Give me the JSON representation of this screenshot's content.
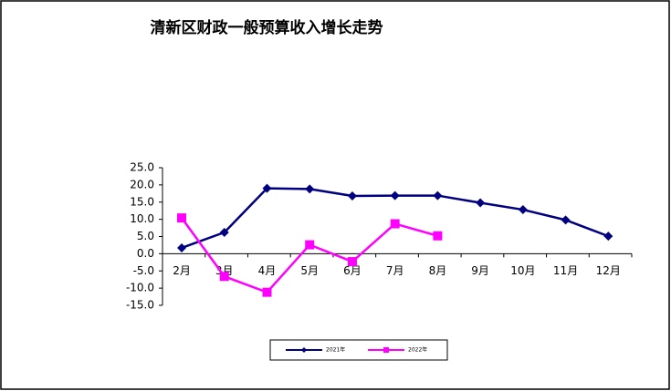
{
  "chart_data": {
    "type": "line",
    "title": "清新区财政一般预算收入增长走势",
    "categories": [
      "2月",
      "3月",
      "4月",
      "5月",
      "6月",
      "7月",
      "8月",
      "9月",
      "10月",
      "11月",
      "12月"
    ],
    "series": [
      {
        "name": "2021年",
        "color": "#000080",
        "marker": "diamond",
        "values": [
          1.7,
          6.2,
          19.0,
          18.8,
          16.8,
          16.9,
          16.9,
          14.8,
          12.8,
          9.8,
          5.1
        ]
      },
      {
        "name": "2022年",
        "color": "#ff00ff",
        "marker": "square",
        "values": [
          10.4,
          -6.6,
          -11.2,
          2.6,
          -2.3,
          8.7,
          5.2,
          null,
          null,
          null,
          null
        ]
      }
    ],
    "ylim": [
      -15,
      25
    ],
    "yticks": [
      {
        "value": -15,
        "label": "-15.0"
      },
      {
        "value": -10,
        "label": "-10.0"
      },
      {
        "value": -5,
        "label": "-5.0"
      },
      {
        "value": 0,
        "label": "0.0"
      },
      {
        "value": 5,
        "label": "5.0"
      },
      {
        "value": 10,
        "label": "10.0"
      },
      {
        "value": 15,
        "label": "15.0"
      },
      {
        "value": 20,
        "label": "20.0"
      },
      {
        "value": 25,
        "label": "25.0"
      }
    ],
    "legend": "bottom"
  }
}
